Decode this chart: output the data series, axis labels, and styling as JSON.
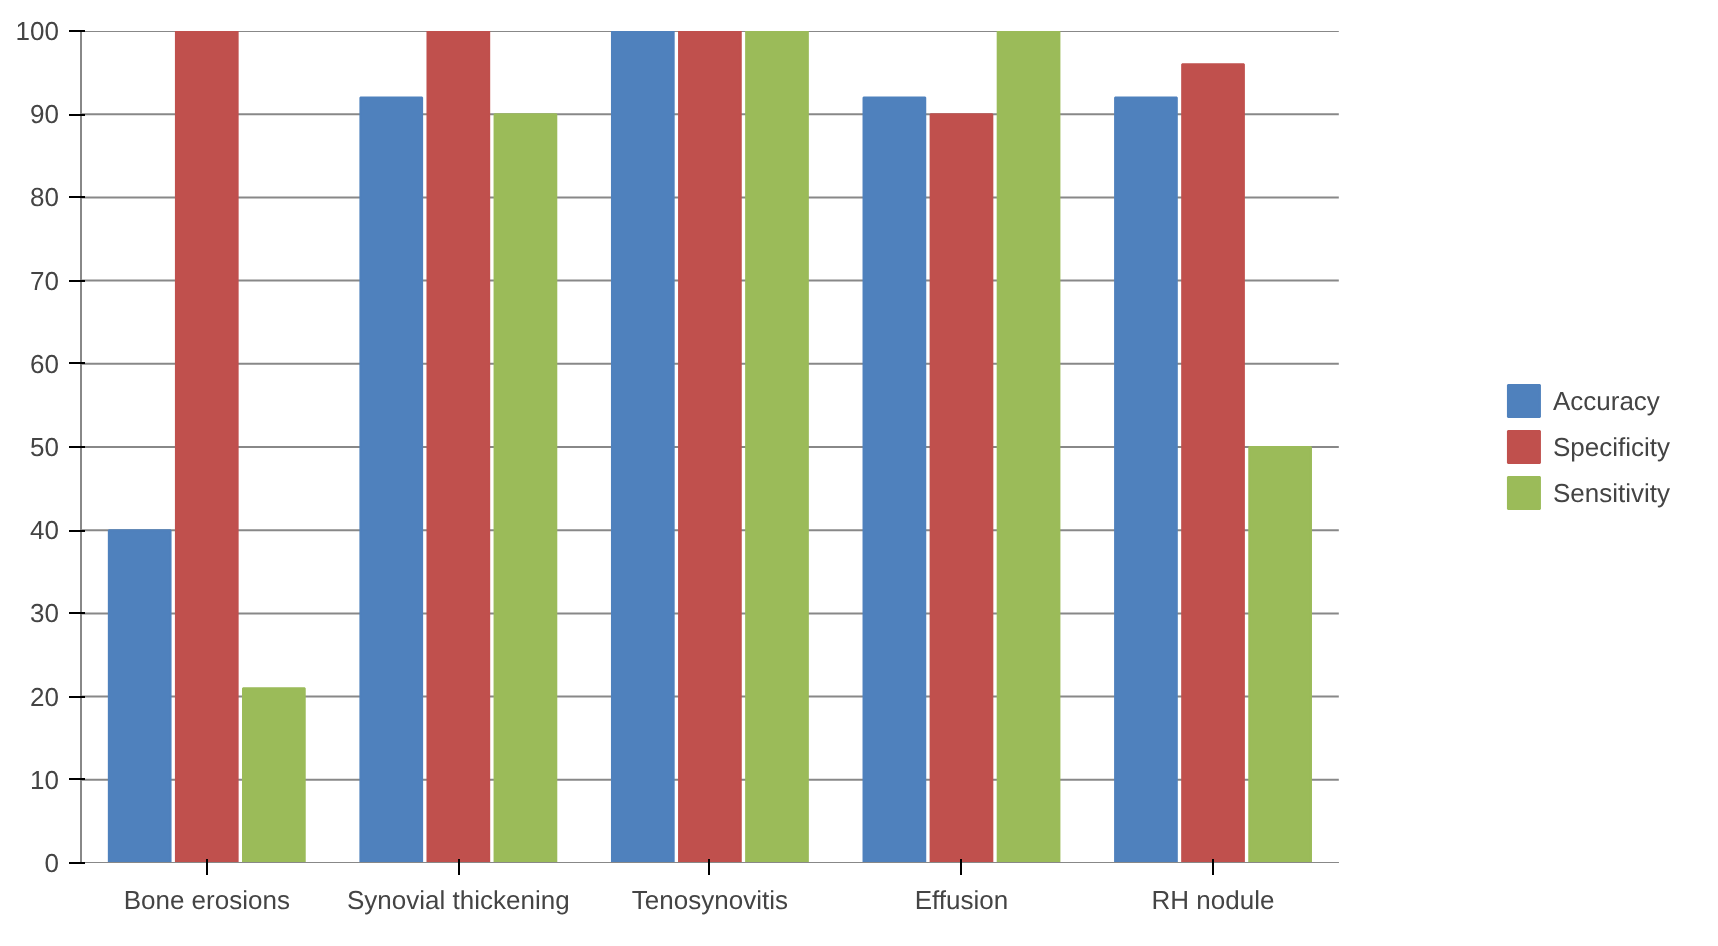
{
  "chart_data": {
    "type": "bar",
    "categories": [
      "Bone erosions",
      "Synovial thickening",
      "Tenosynovitis",
      "Effusion",
      "RH nodule"
    ],
    "series": [
      {
        "name": "Accuracy",
        "color": "#4f81bd",
        "values": [
          40,
          92,
          100,
          92,
          92
        ]
      },
      {
        "name": "Specificity",
        "color": "#c0504d",
        "values": [
          100,
          100,
          100,
          90,
          96
        ]
      },
      {
        "name": "Sensitivity",
        "color": "#9bbb59",
        "values": [
          21,
          90,
          100,
          100,
          50
        ]
      }
    ],
    "ylim": [
      0,
      100
    ],
    "yticks": [
      0,
      10,
      20,
      30,
      40,
      50,
      60,
      70,
      80,
      90,
      100
    ],
    "grid": "y",
    "legend": "right"
  }
}
